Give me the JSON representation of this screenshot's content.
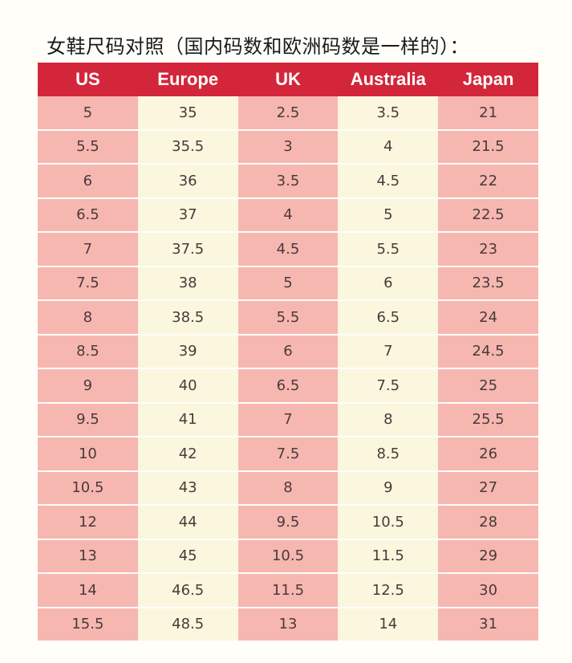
{
  "title": "女鞋尺码对照（国内码数和欧洲码数是一样的）：",
  "table": {
    "headers": [
      "US",
      "Europe",
      "UK",
      "Australia",
      "Japan"
    ],
    "rows": [
      [
        "5",
        "35",
        "2.5",
        "3.5",
        "21"
      ],
      [
        "5.5",
        "35.5",
        "3",
        "4",
        "21.5"
      ],
      [
        "6",
        "36",
        "3.5",
        "4.5",
        "22"
      ],
      [
        "6.5",
        "37",
        "4",
        "5",
        "22.5"
      ],
      [
        "7",
        "37.5",
        "4.5",
        "5.5",
        "23"
      ],
      [
        "7.5",
        "38",
        "5",
        "6",
        "23.5"
      ],
      [
        "8",
        "38.5",
        "5.5",
        "6.5",
        "24"
      ],
      [
        "8.5",
        "39",
        "6",
        "7",
        "24.5"
      ],
      [
        "9",
        "40",
        "6.5",
        "7.5",
        "25"
      ],
      [
        "9.5",
        "41",
        "7",
        "8",
        "25.5"
      ],
      [
        "10",
        "42",
        "7.5",
        "8.5",
        "26"
      ],
      [
        "10.5",
        "43",
        "8",
        "9",
        "27"
      ],
      [
        "12",
        "44",
        "9.5",
        "10.5",
        "28"
      ],
      [
        "13",
        "45",
        "10.5",
        "11.5",
        "29"
      ],
      [
        "14",
        "46.5",
        "11.5",
        "12.5",
        "30"
      ],
      [
        "15.5",
        "48.5",
        "13",
        "14",
        "31"
      ]
    ]
  },
  "colors": {
    "header_bg": "#d3263a",
    "header_text": "#ffffff",
    "pink_column": "#f6b7b0",
    "cream_column": "#fbf7df",
    "cell_text": "#4a3a3a"
  }
}
